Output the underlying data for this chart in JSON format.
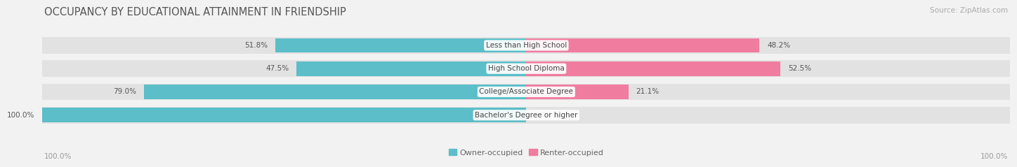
{
  "title": "OCCUPANCY BY EDUCATIONAL ATTAINMENT IN FRIENDSHIP",
  "source": "Source: ZipAtlas.com",
  "categories": [
    "Less than High School",
    "High School Diploma",
    "College/Associate Degree",
    "Bachelor's Degree or higher"
  ],
  "owner_values": [
    51.8,
    47.5,
    79.0,
    100.0
  ],
  "renter_values": [
    48.2,
    52.5,
    21.1,
    0.0
  ],
  "owner_color": "#5bbec8",
  "renter_color": "#f07ca0",
  "bg_color": "#f2f2f2",
  "bar_bg_color": "#e2e2e2",
  "title_fontsize": 10.5,
  "label_fontsize": 7.5,
  "tick_fontsize": 7.5,
  "legend_fontsize": 8,
  "source_fontsize": 7.5,
  "bar_height": 0.62,
  "x_left_label": "100.0%",
  "x_right_label": "100.0%"
}
